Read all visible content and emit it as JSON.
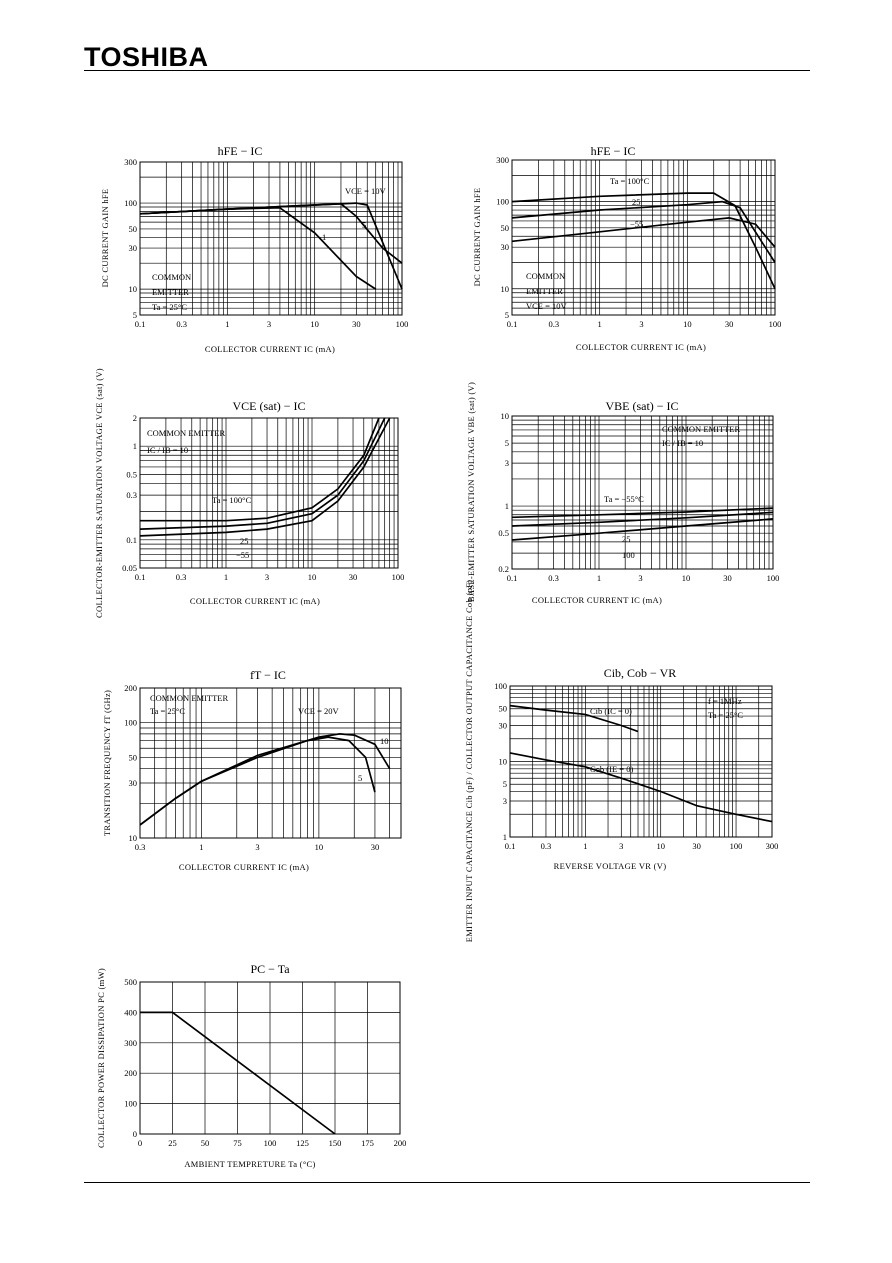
{
  "header": {
    "brand": "TOSHIBA"
  },
  "chart_data": [
    {
      "id": "c1",
      "type": "line",
      "title": "hFE − IC",
      "xlabel": "COLLECTOR CURRENT IC (mA)",
      "ylabel": "DC CURRENT GAIN hFE",
      "xscale": "log",
      "yscale": "log",
      "xlim": [
        0.1,
        100
      ],
      "ylim": [
        5,
        300
      ],
      "xticks": [
        "0.1",
        "0.3",
        "1",
        "3",
        "10",
        "30",
        "100"
      ],
      "yticks": [
        "5",
        "10",
        "30",
        "50",
        "100",
        "300"
      ],
      "annotations": [
        "COMMON",
        "EMITTER",
        "Ta = 25°C"
      ],
      "series": [
        {
          "name": "VCE = 10V",
          "points": [
            [
              0.1,
              75
            ],
            [
              1,
              85
            ],
            [
              10,
              95
            ],
            [
              30,
              100
            ],
            [
              40,
              95
            ],
            [
              60,
              35
            ],
            [
              100,
              10
            ]
          ]
        },
        {
          "name": "5",
          "points": [
            [
              0.1,
              75
            ],
            [
              1,
              85
            ],
            [
              10,
              95
            ],
            [
              20,
              98
            ],
            [
              30,
              70
            ],
            [
              60,
              30
            ],
            [
              100,
              20
            ]
          ]
        },
        {
          "name": "1",
          "points": [
            [
              0.1,
              75
            ],
            [
              1,
              85
            ],
            [
              4,
              88
            ],
            [
              10,
              45
            ],
            [
              30,
              14
            ],
            [
              50,
              10
            ]
          ]
        }
      ]
    },
    {
      "id": "c2",
      "type": "line",
      "title": "hFE − IC",
      "xlabel": "COLLECTOR CURRENT IC (mA)",
      "ylabel": "DC CURRENT GAIN hFE",
      "xscale": "log",
      "yscale": "log",
      "xlim": [
        0.1,
        100
      ],
      "ylim": [
        5,
        300
      ],
      "xticks": [
        "0.1",
        "0.3",
        "1",
        "3",
        "10",
        "30",
        "100"
      ],
      "yticks": [
        "5",
        "10",
        "30",
        "50",
        "100",
        "300"
      ],
      "annotations": [
        "COMMON",
        "EMITTER",
        "VCE = 10V"
      ],
      "series": [
        {
          "name": "Ta = 100°C",
          "points": [
            [
              0.1,
              100
            ],
            [
              1,
              115
            ],
            [
              10,
              125
            ],
            [
              20,
              125
            ],
            [
              35,
              90
            ],
            [
              60,
              30
            ],
            [
              100,
              10
            ]
          ]
        },
        {
          "name": "25",
          "points": [
            [
              0.1,
              65
            ],
            [
              1,
              80
            ],
            [
              10,
              92
            ],
            [
              25,
              100
            ],
            [
              40,
              85
            ],
            [
              70,
              35
            ],
            [
              100,
              20
            ]
          ]
        },
        {
          "name": "−55",
          "points": [
            [
              0.1,
              35
            ],
            [
              1,
              45
            ],
            [
              10,
              58
            ],
            [
              30,
              65
            ],
            [
              60,
              55
            ],
            [
              100,
              30
            ]
          ]
        }
      ]
    },
    {
      "id": "c3",
      "type": "line",
      "title": "VCE (sat) − IC",
      "xlabel": "COLLECTOR CURRENT IC (mA)",
      "ylabel": "COLLECTOR-EMITTER SATURATION VOLTAGE VCE (sat) (V)",
      "xscale": "log",
      "yscale": "log",
      "xlim": [
        0.1,
        100
      ],
      "ylim": [
        0.05,
        2
      ],
      "xticks": [
        "0.1",
        "0.3",
        "1",
        "3",
        "10",
        "30",
        "100"
      ],
      "yticks": [
        "0.05",
        "0.1",
        "0.3",
        "0.5",
        "1",
        "2"
      ],
      "annotations": [
        "COMMON EMITTER",
        "IC / IB = 10"
      ],
      "series": [
        {
          "name": "Ta = 100°C",
          "points": [
            [
              0.1,
              0.16
            ],
            [
              1,
              0.16
            ],
            [
              3,
              0.17
            ],
            [
              10,
              0.22
            ],
            [
              20,
              0.35
            ],
            [
              40,
              0.8
            ],
            [
              60,
              2
            ]
          ]
        },
        {
          "name": "25",
          "points": [
            [
              0.1,
              0.13
            ],
            [
              1,
              0.14
            ],
            [
              3,
              0.15
            ],
            [
              10,
              0.19
            ],
            [
              20,
              0.3
            ],
            [
              40,
              0.7
            ],
            [
              70,
              2
            ]
          ]
        },
        {
          "name": "−55",
          "points": [
            [
              0.1,
              0.11
            ],
            [
              1,
              0.12
            ],
            [
              3,
              0.13
            ],
            [
              10,
              0.16
            ],
            [
              20,
              0.26
            ],
            [
              40,
              0.6
            ],
            [
              80,
              2
            ]
          ]
        }
      ]
    },
    {
      "id": "c4",
      "type": "line",
      "title": "VBE (sat) − IC",
      "xlabel": "COLLECTOR CURRENT IC (mA)",
      "ylabel": "BASE-EMITTER SATURATION VOLTAGE VBE (sat) (V)",
      "xscale": "log",
      "yscale": "log",
      "xlim": [
        0.1,
        100
      ],
      "ylim": [
        0.2,
        10
      ],
      "xticks": [
        "0.1",
        "0.3",
        "1",
        "3",
        "10",
        "30",
        "100"
      ],
      "yticks": [
        "0.2",
        "0.5",
        "1",
        "3",
        "5",
        "10"
      ],
      "annotations": [
        "COMMON EMITTER",
        "IC / IB = 10"
      ],
      "series": [
        {
          "name": "Ta = −55°C",
          "points": [
            [
              0.1,
              0.75
            ],
            [
              1,
              0.8
            ],
            [
              10,
              0.86
            ],
            [
              100,
              0.95
            ]
          ]
        },
        {
          "name": "25",
          "points": [
            [
              0.1,
              0.6
            ],
            [
              1,
              0.66
            ],
            [
              10,
              0.74
            ],
            [
              100,
              0.85
            ]
          ]
        },
        {
          "name": "100",
          "points": [
            [
              0.1,
              0.42
            ],
            [
              1,
              0.5
            ],
            [
              10,
              0.6
            ],
            [
              100,
              0.72
            ]
          ]
        }
      ]
    },
    {
      "id": "c5",
      "type": "line",
      "title": "fT − IC",
      "xlabel": "COLLECTOR CURRENT IC (mA)",
      "ylabel": "TRANSITION FREQUENCY fT (GHz)",
      "xscale": "log",
      "yscale": "log",
      "xlim": [
        0.3,
        50
      ],
      "ylim": [
        10,
        200
      ],
      "xticks": [
        "0.3",
        "1",
        "3",
        "10",
        "30"
      ],
      "yticks": [
        "10",
        "30",
        "50",
        "100",
        "200"
      ],
      "annotations": [
        "COMMON EMITTER",
        "Ta = 25°C",
        "VCE = 20V"
      ],
      "series": [
        {
          "name": "10",
          "points": [
            [
              0.3,
              13
            ],
            [
              0.6,
              22
            ],
            [
              1,
              31
            ],
            [
              3,
              52
            ],
            [
              10,
              75
            ],
            [
              15,
              80
            ],
            [
              20,
              78
            ],
            [
              30,
              65
            ],
            [
              40,
              40
            ]
          ]
        },
        {
          "name": "5",
          "points": [
            [
              0.3,
              13
            ],
            [
              0.6,
              22
            ],
            [
              1,
              31
            ],
            [
              3,
              50
            ],
            [
              8,
              70
            ],
            [
              12,
              75
            ],
            [
              18,
              70
            ],
            [
              25,
              50
            ],
            [
              30,
              25
            ]
          ]
        }
      ]
    },
    {
      "id": "c6",
      "type": "line",
      "title": "Cib, Cob − VR",
      "xlabel": "REVERSE VOLTAGE VR (V)",
      "ylabel": "EMITTER INPUT CAPACITANCE Cib (pF) / COLLECTOR OUTPUT CAPACITANCE Cob (pF)",
      "xscale": "log",
      "yscale": "log",
      "xlim": [
        0.1,
        300
      ],
      "ylim": [
        1,
        100
      ],
      "xticks": [
        "0.1",
        "0.3",
        "1",
        "3",
        "10",
        "30",
        "100",
        "300"
      ],
      "yticks": [
        "1",
        "3",
        "5",
        "10",
        "30",
        "50",
        "100"
      ],
      "annotations": [
        "f = 1MHz",
        "Ta = 25°C"
      ],
      "series": [
        {
          "name": "Cib (IC = 0)",
          "points": [
            [
              0.1,
              55
            ],
            [
              0.3,
              48
            ],
            [
              1,
              42
            ],
            [
              3,
              30
            ],
            [
              5,
              25
            ]
          ]
        },
        {
          "name": "Cob (IE = 0)",
          "points": [
            [
              0.1,
              13
            ],
            [
              0.3,
              10.5
            ],
            [
              1,
              8.5
            ],
            [
              3,
              6
            ],
            [
              10,
              4
            ],
            [
              30,
              2.6
            ],
            [
              100,
              2
            ],
            [
              300,
              1.6
            ]
          ]
        }
      ]
    },
    {
      "id": "c7",
      "type": "line",
      "title": "PC − Ta",
      "xlabel": "AMBIENT TEMPRETURE Ta (°C)",
      "ylabel": "COLLECTOR POWER DISSIPATION PC (mW)",
      "xscale": "linear",
      "yscale": "linear",
      "xlim": [
        0,
        200
      ],
      "ylim": [
        0,
        500
      ],
      "xticks": [
        "0",
        "25",
        "50",
        "75",
        "100",
        "125",
        "150",
        "175",
        "200"
      ],
      "yticks": [
        "0",
        "100",
        "200",
        "300",
        "400",
        "500"
      ],
      "annotations": [],
      "series": [
        {
          "name": "",
          "points": [
            [
              0,
              400
            ],
            [
              25,
              400
            ],
            [
              150,
              0
            ]
          ]
        }
      ]
    }
  ]
}
